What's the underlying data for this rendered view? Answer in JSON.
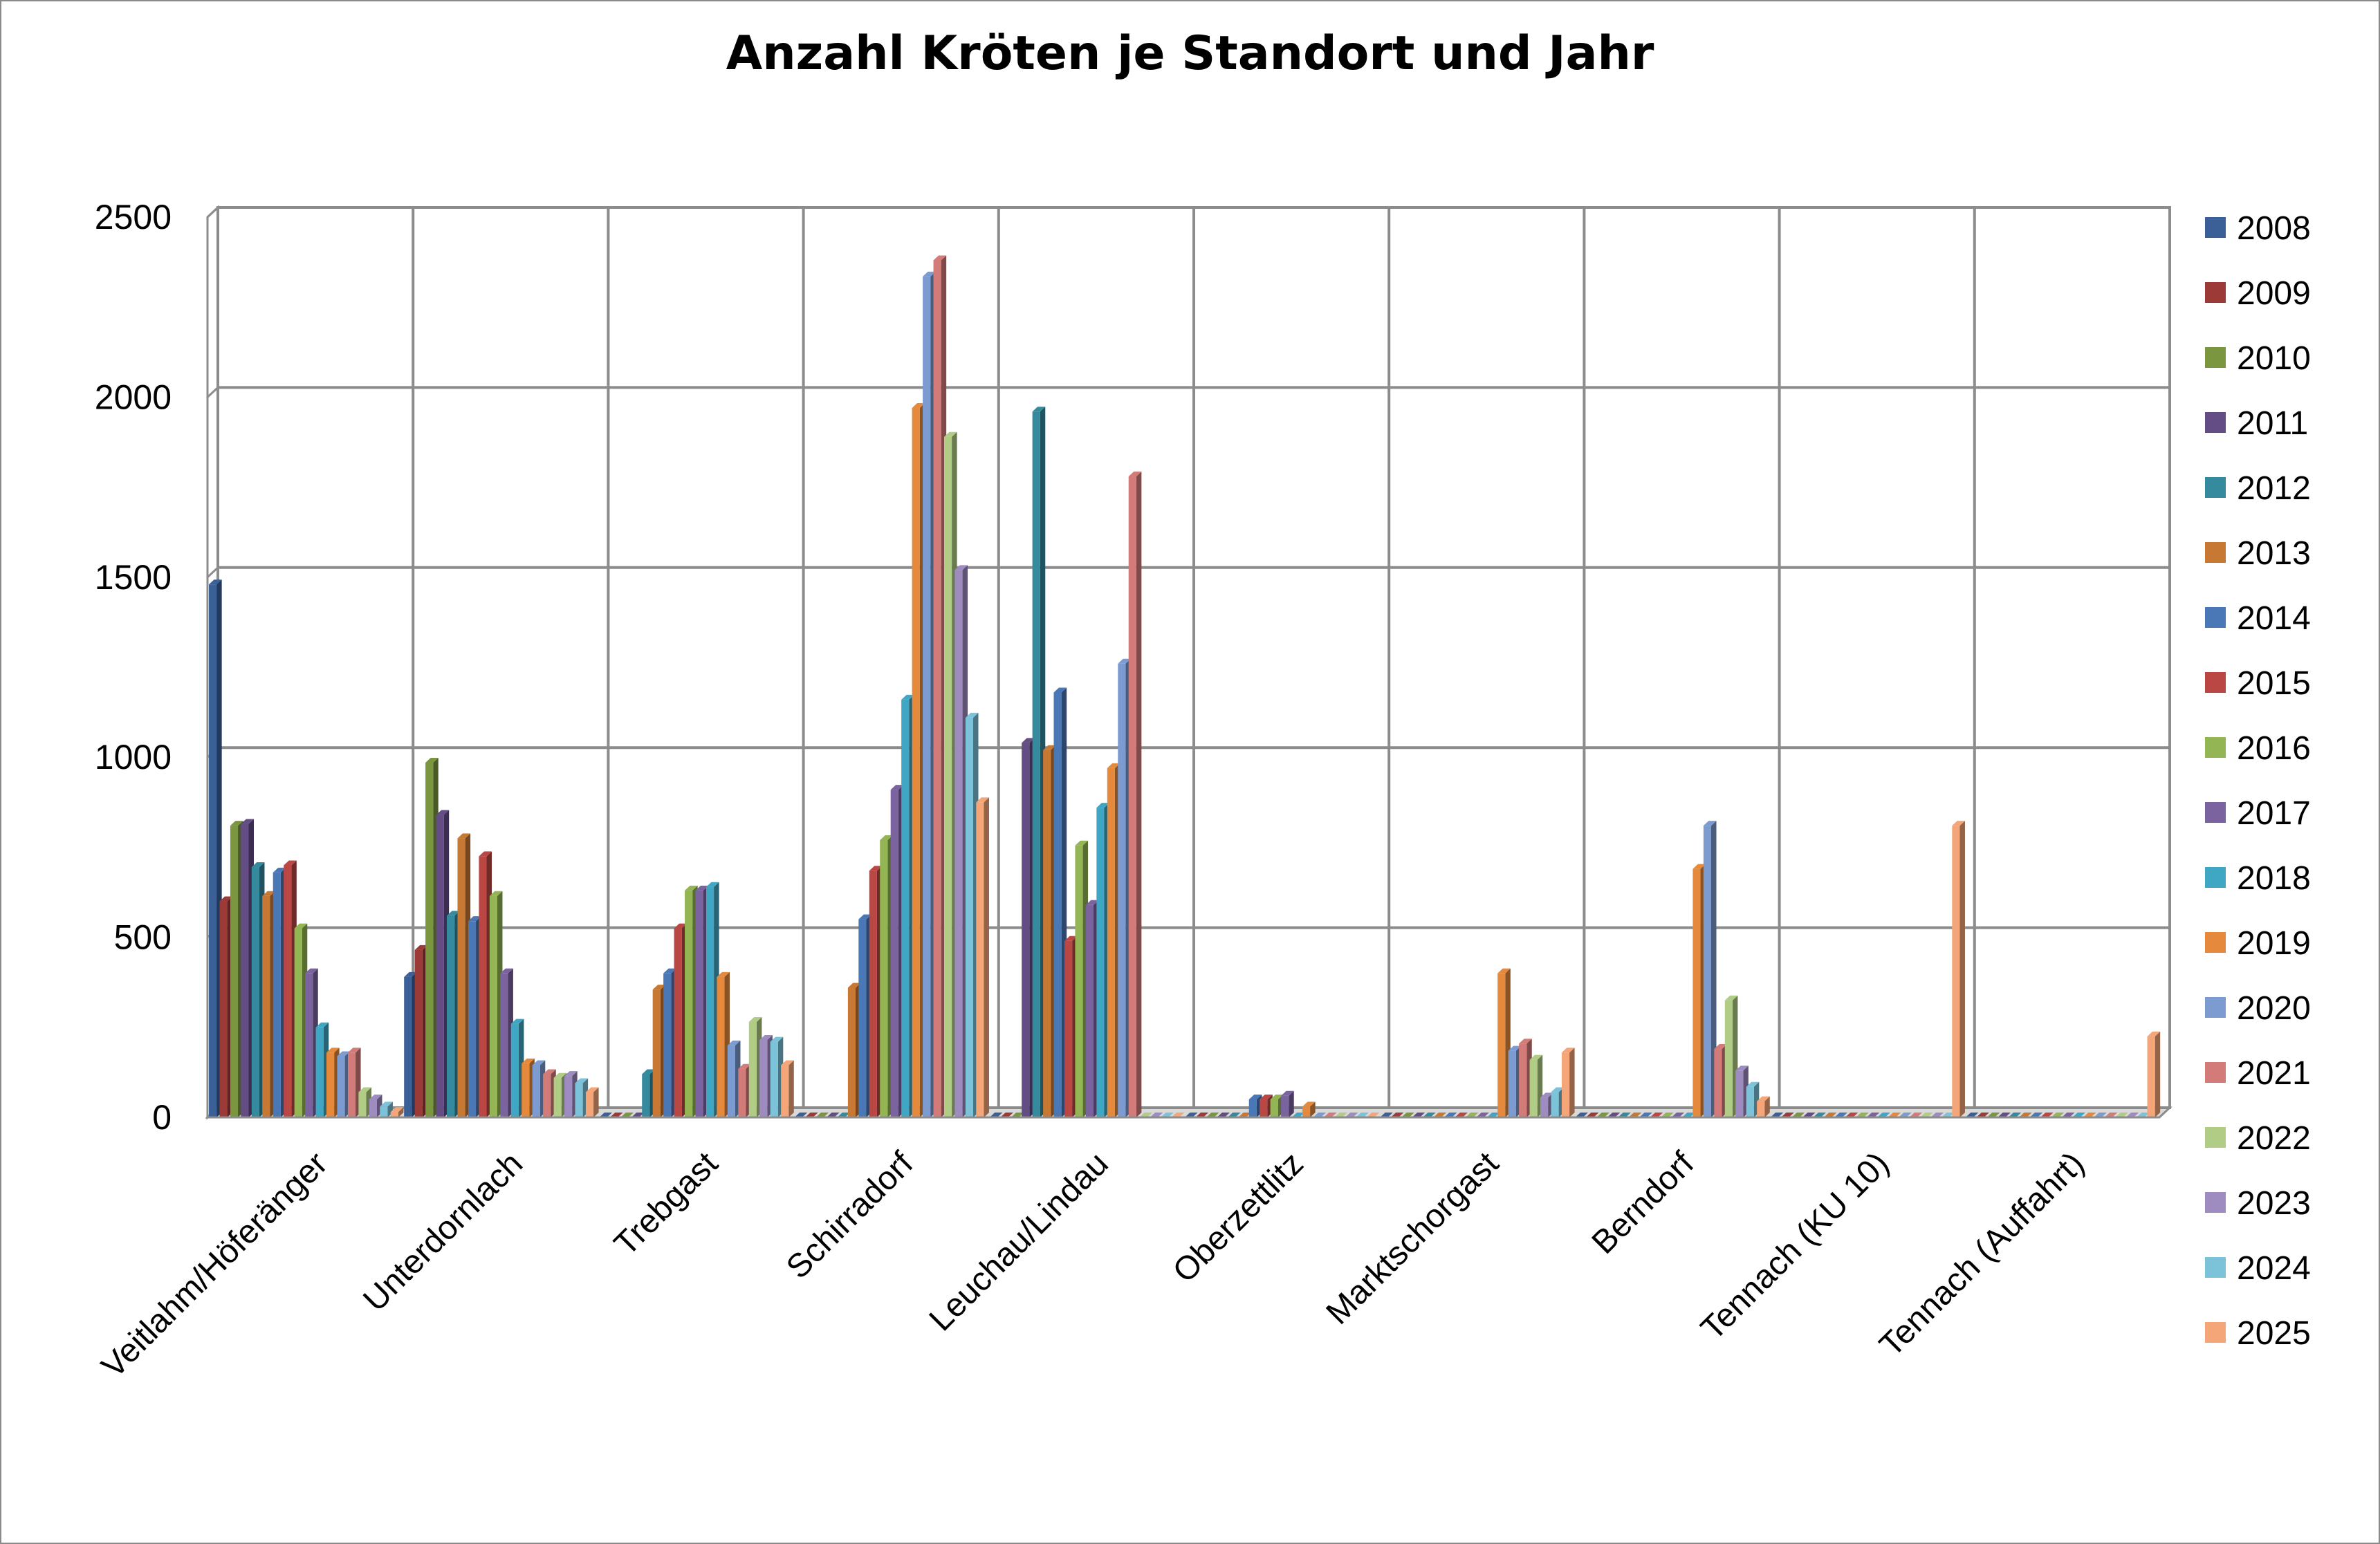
{
  "chart_data": {
    "type": "bar",
    "title": "Anzahl Kröten je Standort und Jahr",
    "xlabel": "",
    "ylabel": "",
    "ylim": [
      0,
      2500
    ],
    "yticks": [
      "0",
      "500",
      "1000",
      "1500",
      "2000",
      "2500"
    ],
    "grid": true,
    "legend_position": "right",
    "categories": [
      "Veitlahm/Höferänger",
      "Unterdornlach",
      "Trebgast",
      "Schirradorf",
      "Leuchau/Lindau",
      "Oberzettlitz",
      "Marktschorgast",
      "Berndorf",
      "Tennach  (KU 10)",
      "Tennach (Auffahrt)"
    ],
    "series": [
      {
        "name": "2008",
        "color": "#3b5f97",
        "values": [
          1480,
          390,
          0,
          0,
          0,
          0,
          0,
          0,
          0,
          0
        ]
      },
      {
        "name": "2009",
        "color": "#9b3a37",
        "values": [
          600,
          465,
          0,
          0,
          0,
          0,
          0,
          0,
          0,
          0
        ]
      },
      {
        "name": "2010",
        "color": "#7a963f",
        "values": [
          810,
          985,
          0,
          0,
          0,
          0,
          0,
          0,
          0,
          0
        ]
      },
      {
        "name": "2011",
        "color": "#644c85",
        "values": [
          815,
          840,
          0,
          0,
          1040,
          0,
          0,
          0,
          0,
          0
        ]
      },
      {
        "name": "2012",
        "color": "#358a9e",
        "values": [
          695,
          560,
          120,
          0,
          1960,
          0,
          0,
          0,
          0,
          0
        ]
      },
      {
        "name": "2013",
        "color": "#c77833",
        "values": [
          615,
          775,
          355,
          360,
          1020,
          0,
          0,
          0,
          0,
          0
        ]
      },
      {
        "name": "2014",
        "color": "#4a77b6",
        "values": [
          680,
          545,
          400,
          550,
          1180,
          50,
          0,
          0,
          0,
          0
        ]
      },
      {
        "name": "2015",
        "color": "#bb4745",
        "values": [
          700,
          725,
          525,
          685,
          490,
          50,
          0,
          0,
          0,
          0
        ]
      },
      {
        "name": "2016",
        "color": "#93b553",
        "values": [
          525,
          615,
          630,
          770,
          755,
          50,
          0,
          0,
          0,
          0
        ]
      },
      {
        "name": "2017",
        "color": "#7b63a0",
        "values": [
          400,
          400,
          630,
          910,
          590,
          60,
          0,
          0,
          0,
          0
        ]
      },
      {
        "name": "2018",
        "color": "#3fa7c4",
        "values": [
          250,
          260,
          640,
          1160,
          860,
          0,
          0,
          0,
          0,
          0
        ]
      },
      {
        "name": "2019",
        "color": "#e58a3c",
        "values": [
          180,
          150,
          390,
          1970,
          970,
          30,
          400,
          690,
          0,
          0
        ]
      },
      {
        "name": "2020",
        "color": "#7c9bd0",
        "values": [
          170,
          145,
          200,
          2335,
          1260,
          0,
          185,
          810,
          0,
          0
        ]
      },
      {
        "name": "2021",
        "color": "#d37b79",
        "values": [
          180,
          120,
          135,
          2380,
          1780,
          0,
          205,
          190,
          0,
          0
        ]
      },
      {
        "name": "2022",
        "color": "#b1cd85",
        "values": [
          70,
          110,
          265,
          1890,
          0,
          0,
          160,
          325,
          0,
          0
        ]
      },
      {
        "name": "2023",
        "color": "#9e8bbf",
        "values": [
          50,
          115,
          215,
          1520,
          0,
          0,
          55,
          130,
          0,
          0
        ]
      },
      {
        "name": "2024",
        "color": "#7cc2d9",
        "values": [
          30,
          95,
          210,
          1110,
          0,
          0,
          70,
          85,
          0,
          0
        ]
      },
      {
        "name": "2025",
        "color": "#f5a678",
        "values": [
          15,
          70,
          145,
          875,
          0,
          0,
          180,
          45,
          810,
          225
        ]
      }
    ]
  }
}
